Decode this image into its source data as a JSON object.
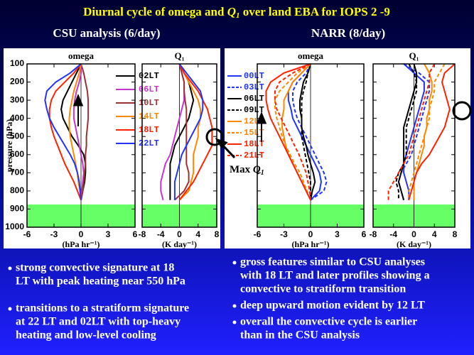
{
  "slide": {
    "title_parts": [
      "Diurnal cycle of omega and ",
      "Q",
      "1",
      " over land EBA for IOPS 2 -9"
    ],
    "subtitles": [
      "CSU analysis (6/day)",
      "NARR (8/day)"
    ],
    "annotation": [
      "Max ",
      "Q",
      "1"
    ],
    "bullets_left": [
      [
        "strong convective signature at 18",
        "LT  with peak heating near 550 hPa"
      ],
      [
        "transitions to a stratiform signature",
        "at 22 LT and 02LT with top-heavy",
        "heating and low-level cooling"
      ]
    ],
    "bullets_right": [
      [
        "gross features similar to CSU analyses",
        "with 18 LT and later profiles showing a",
        "convective to stratiform transition"
      ],
      [
        "deep upward motion evident by 12 LT"
      ],
      [
        "overall the convective cycle is earlier",
        "than in the CSU analysis"
      ]
    ]
  },
  "chart_data": [
    {
      "type": "profile",
      "title": "omega",
      "xlabel": "(hPa hr⁻¹)",
      "ylabel": "pressure (hPa)",
      "y": [
        100,
        150,
        200,
        250,
        300,
        350,
        400,
        450,
        500,
        550,
        600,
        650,
        700,
        750,
        800,
        850
      ],
      "xlim": [
        -6,
        6
      ],
      "xticks": [
        -6,
        -3,
        0,
        3,
        6
      ],
      "ylim": [
        100,
        1000
      ],
      "yticks": [
        100,
        200,
        300,
        400,
        500,
        600,
        700,
        800,
        900,
        1000
      ],
      "shaded_ylim": [
        875,
        1000
      ],
      "shade_color": "#66ff66",
      "series": [
        {
          "name": "02LT",
          "color": "#000000",
          "dash": false,
          "values": [
            0,
            -0.5,
            -1,
            -1.5,
            -2,
            -2.2,
            -2,
            -1.5,
            -1,
            -0.3,
            0.3,
            0.5,
            0.5,
            0.4,
            0.2,
            0
          ]
        },
        {
          "name": "06LT",
          "color": "#cc33cc",
          "dash": false,
          "values": [
            0,
            0,
            -0.2,
            -0.5,
            -0.7,
            -0.8,
            -0.8,
            -0.6,
            -0.4,
            -0.2,
            0,
            0.2,
            0.3,
            0.2,
            0.1,
            0
          ]
        },
        {
          "name": "10LT",
          "color": "#993333",
          "dash": false,
          "values": [
            0,
            0.3,
            0.5,
            0.7,
            0.8,
            0.8,
            0.8,
            0.7,
            0.6,
            0.6,
            0.5,
            0.5,
            0.4,
            0.3,
            0.2,
            0
          ]
        },
        {
          "name": "14LT",
          "color": "#ff8800",
          "dash": false,
          "values": [
            0,
            -0.2,
            -0.5,
            -0.8,
            -1,
            -1.2,
            -1.3,
            -1.3,
            -1.2,
            -1,
            -0.8,
            -0.6,
            -0.4,
            -0.3,
            -0.1,
            0
          ]
        },
        {
          "name": "18LT",
          "color": "#ff2200",
          "dash": false,
          "values": [
            0,
            -0.8,
            -1.8,
            -2.8,
            -3.3,
            -3.5,
            -3.5,
            -3.3,
            -3,
            -2.6,
            -2.2,
            -1.8,
            -1.3,
            -0.8,
            -0.4,
            0
          ]
        },
        {
          "name": "22LT",
          "color": "#2233ff",
          "dash": false,
          "values": [
            0,
            -1.2,
            -2.8,
            -3.8,
            -4,
            -3.8,
            -3.5,
            -3,
            -2.4,
            -1.8,
            -1.2,
            -0.7,
            -0.4,
            -0.2,
            -0.1,
            0
          ]
        }
      ]
    },
    {
      "type": "profile",
      "title": "Q₁",
      "xlabel": "(K day⁻¹)",
      "y": [
        100,
        150,
        200,
        250,
        300,
        350,
        400,
        450,
        500,
        550,
        600,
        650,
        700,
        750,
        800,
        850
      ],
      "xlim": [
        -8,
        8
      ],
      "xticks": [
        -8,
        -4,
        0,
        4,
        8
      ],
      "ylim": [
        100,
        1000
      ],
      "yticks": [
        100,
        200,
        300,
        400,
        500,
        600,
        700,
        800,
        900,
        1000
      ],
      "shaded_ylim": [
        875,
        1000
      ],
      "shade_color": "#66ff66",
      "series": [
        {
          "color": "#000000",
          "dash": false,
          "values": [
            0,
            1,
            2,
            2.5,
            3,
            2.5,
            2,
            1,
            0,
            -1,
            -1.5,
            -2,
            -2,
            -2,
            -2,
            -2
          ]
        },
        {
          "color": "#cc33cc",
          "dash": false,
          "values": [
            0,
            0.5,
            1,
            1,
            1,
            0.5,
            0,
            -0.5,
            -1,
            -1.5,
            -2,
            -3,
            -3.5,
            -4,
            -4,
            -3.5
          ]
        },
        {
          "color": "#993333",
          "dash": false,
          "values": [
            0,
            0.5,
            1,
            1,
            1.2,
            1.5,
            1.5,
            1.5,
            1.5,
            1.5,
            1.5,
            1.5,
            2,
            2,
            1,
            -1
          ]
        },
        {
          "color": "#ff8800",
          "dash": false,
          "values": [
            0,
            1,
            2,
            3,
            4,
            4.5,
            4.5,
            4,
            4,
            3.5,
            3,
            3,
            3,
            2.5,
            2,
            0
          ]
        },
        {
          "color": "#ff2200",
          "dash": false,
          "values": [
            0,
            1,
            2.5,
            4,
            5,
            6,
            6.5,
            7,
            7,
            7,
            6,
            5,
            4,
            3,
            1.5,
            0
          ]
        },
        {
          "color": "#2233ff",
          "dash": false,
          "values": [
            0,
            1.5,
            3,
            4.5,
            5,
            5,
            4.5,
            3.5,
            2.5,
            1.5,
            0.5,
            0,
            -0.5,
            -1,
            -1,
            -1
          ]
        }
      ]
    },
    {
      "type": "profile",
      "title": "omega",
      "xlabel": "(hPa hr⁻¹)",
      "y": [
        100,
        150,
        200,
        250,
        300,
        350,
        400,
        450,
        500,
        550,
        600,
        650,
        700,
        750,
        800,
        850
      ],
      "xlim": [
        -6,
        6
      ],
      "xticks": [
        -6,
        -3,
        0,
        3,
        6
      ],
      "ylim": [
        100,
        1000
      ],
      "yticks": [
        100,
        200,
        300,
        400,
        500,
        600,
        700,
        800,
        900,
        1000
      ],
      "shaded_ylim": [
        875,
        1000
      ],
      "shade_color": "#66ff66",
      "series": [
        {
          "name": "00LT",
          "color": "#2233ff",
          "dash": false,
          "values": [
            0,
            -1,
            -2,
            -2.5,
            -2.5,
            -2.2,
            -2,
            -1.5,
            -1,
            -0.5,
            0,
            0.5,
            1,
            1.2,
            1,
            0
          ]
        },
        {
          "name": "03LT",
          "color": "#2233ff",
          "dash": true,
          "values": [
            0,
            -0.5,
            -1.5,
            -2,
            -2,
            -1.8,
            -1.5,
            -1,
            -0.5,
            0,
            0.5,
            1,
            1.5,
            1.8,
            1.5,
            0
          ]
        },
        {
          "name": "06LT",
          "color": "#000000",
          "dash": false,
          "values": [
            0,
            -0.3,
            -0.8,
            -1,
            -1.2,
            -1.2,
            -1,
            -1,
            -0.8,
            -0.5,
            -0.3,
            0,
            0.3,
            0.5,
            0.2,
            0
          ]
        },
        {
          "name": "09LT",
          "color": "#000000",
          "dash": true,
          "values": [
            0,
            -0.3,
            -0.5,
            -0.8,
            -1,
            -1,
            -1,
            -1,
            -1,
            -0.8,
            -0.6,
            -0.4,
            -0.2,
            0,
            0,
            0
          ]
        },
        {
          "name": "12LT",
          "color": "#ff8800",
          "dash": false,
          "values": [
            0,
            -1,
            -2,
            -2.5,
            -3,
            -3,
            -3.2,
            -3.2,
            -3,
            -2.8,
            -2.5,
            -2,
            -1.5,
            -1,
            -0.5,
            0
          ]
        },
        {
          "name": "15LT",
          "color": "#ff8800",
          "dash": true,
          "values": [
            0,
            -1.5,
            -2.5,
            -3.5,
            -4,
            -4,
            -3.8,
            -3.5,
            -3.2,
            -2.8,
            -2.3,
            -1.8,
            -1.2,
            -0.8,
            -0.4,
            0
          ]
        },
        {
          "name": "18LT",
          "color": "#ff2200",
          "dash": false,
          "values": [
            0,
            -3,
            -4.5,
            -5,
            -5,
            -4.8,
            -4.5,
            -4,
            -3.5,
            -3,
            -2.5,
            -2,
            -1.5,
            -1,
            -0.5,
            0
          ]
        },
        {
          "name": "21LT",
          "color": "#ff2200",
          "dash": true,
          "values": [
            0,
            -2,
            -3.5,
            -4,
            -4,
            -3.8,
            -3.3,
            -2.8,
            -2.3,
            -1.8,
            -1.3,
            -0.9,
            -0.5,
            -0.3,
            -0.1,
            0
          ]
        }
      ]
    },
    {
      "type": "profile",
      "title": "Q₁",
      "xlabel": "(K day⁻¹)",
      "y": [
        100,
        150,
        200,
        250,
        300,
        350,
        400,
        450,
        500,
        550,
        600,
        650,
        700,
        750,
        800,
        850
      ],
      "xlim": [
        -8,
        8
      ],
      "xticks": [
        -8,
        -4,
        0,
        4,
        8
      ],
      "ylim": [
        100,
        1000
      ],
      "yticks": [
        100,
        200,
        300,
        400,
        500,
        600,
        700,
        800,
        900,
        1000
      ],
      "shaded_ylim": [
        875,
        1000
      ],
      "shade_color": "#66ff66",
      "series": [
        {
          "color": "#2233ff",
          "dash": false,
          "values": [
            -2,
            0,
            2,
            2,
            1.5,
            1,
            0.5,
            0,
            -0.5,
            -1,
            -1.5,
            -2,
            -2,
            -1.5,
            -1,
            -1
          ]
        },
        {
          "color": "#2233ff",
          "dash": true,
          "values": [
            -2,
            1,
            3,
            3,
            2.5,
            2,
            1.5,
            1,
            0.5,
            0,
            -0.5,
            -1.5,
            -2.5,
            -3,
            -2.5,
            -2
          ]
        },
        {
          "color": "#000000",
          "dash": false,
          "values": [
            0,
            0.5,
            0.5,
            0,
            -0.5,
            -1,
            -1.5,
            -2,
            -2,
            -2,
            -2,
            -2,
            -2.5,
            -3,
            -2.5,
            -2
          ]
        },
        {
          "color": "#000000",
          "dash": true,
          "values": [
            -1,
            0,
            0.5,
            0.5,
            0,
            -0.5,
            -1,
            -1.5,
            -1.5,
            -1.5,
            -1.5,
            -2,
            -3,
            -3.5,
            -3,
            -3
          ]
        },
        {
          "color": "#ff8800",
          "dash": false,
          "values": [
            2,
            3,
            3.5,
            3.5,
            3,
            3,
            2.5,
            2.5,
            2,
            2,
            1.5,
            1,
            0.5,
            0,
            0,
            0
          ]
        },
        {
          "color": "#ff8800",
          "dash": true,
          "values": [
            6,
            5,
            4,
            4,
            3.5,
            3,
            3,
            2.5,
            2,
            1.5,
            1,
            0.5,
            0,
            -0.5,
            -1,
            -1
          ]
        },
        {
          "color": "#ff2200",
          "dash": false,
          "values": [
            8,
            6,
            5.5,
            6,
            6.5,
            7,
            6.5,
            6,
            5,
            4,
            3,
            1.5,
            0.5,
            0,
            -0.5,
            -1
          ]
        },
        {
          "color": "#ff2200",
          "dash": true,
          "values": [
            4,
            3,
            3,
            2.5,
            2,
            1.5,
            1,
            0.5,
            0,
            -0.5,
            -1,
            -2,
            -3,
            -4,
            -5,
            -5
          ]
        }
      ]
    }
  ]
}
